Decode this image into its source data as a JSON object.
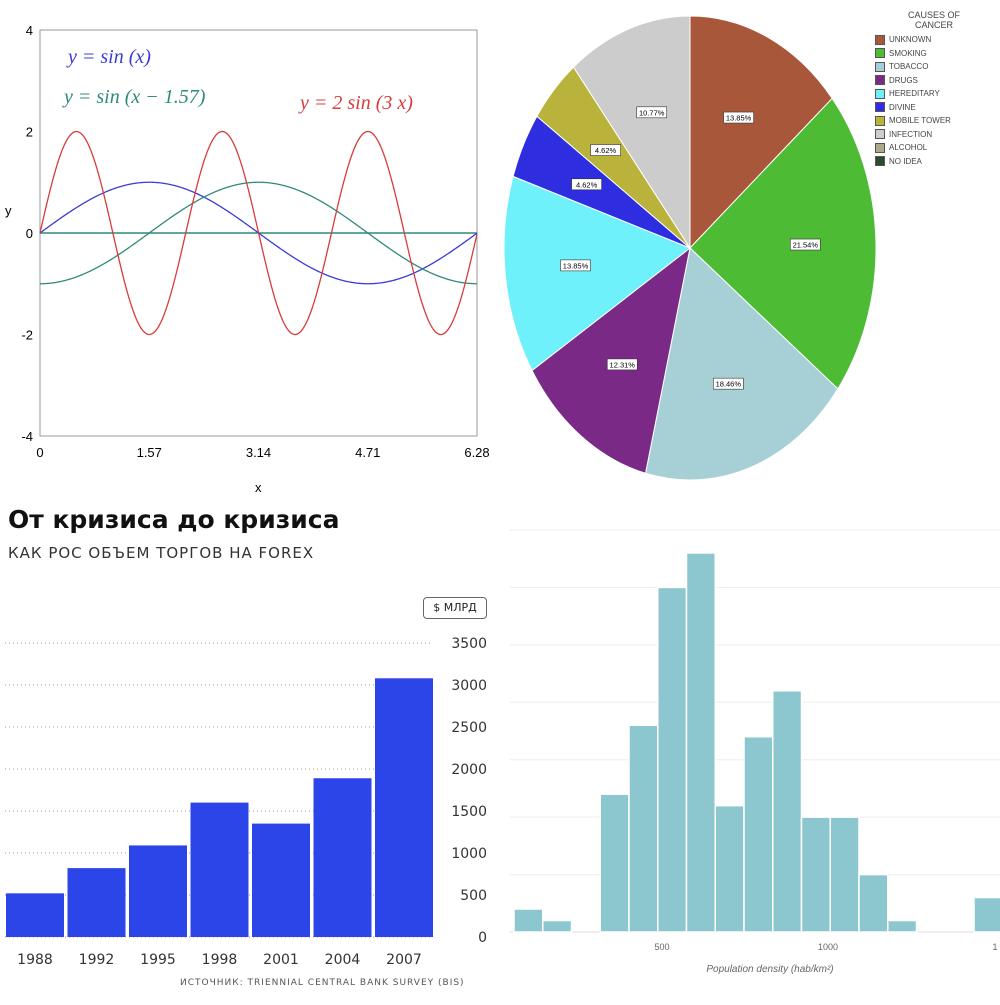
{
  "colors": {
    "sin_x": "#3b3bd6",
    "sin_shift": "#2f8a7a",
    "two_sin": "#d83c3c",
    "forex_bar": "#2c45e8",
    "hist_bar": "#8cc7cf",
    "pie_label_bg": "#ffffff"
  },
  "chart_data": [
    {
      "type": "line",
      "xlabel": "x",
      "ylabel": "y",
      "xlim": [
        0,
        6.28
      ],
      "ylim": [
        -4,
        4
      ],
      "x_ticks": [
        "0",
        "1.57",
        "3.14",
        "4.71",
        "6.28"
      ],
      "y_ticks": [
        "4",
        "2",
        "0",
        "-2",
        "-4"
      ],
      "annotations": {
        "eq1": "y = sin (x)",
        "eq2": "y = sin (x − 1.57)",
        "eq3": "y = 2 sin (3 x)"
      },
      "series": [
        {
          "name": "y = sin (x)",
          "function": "sin(x)",
          "color": "#3b3bd6"
        },
        {
          "name": "y = sin (x − 1.57)",
          "function": "sin(x - 1.57)",
          "color": "#2f8a7a"
        },
        {
          "name": "y = 2 sin (3 x)",
          "function": "2*sin(3*x)",
          "color": "#d83c3c"
        }
      ],
      "baseline": 0
    },
    {
      "type": "pie",
      "legend_title": [
        "CAUSES OF",
        "CANCER"
      ],
      "legend_placement": "top-right",
      "slices": [
        {
          "label": "UNKNOWN",
          "value": 13.85,
          "text": "13.85%",
          "color": "#a9573a"
        },
        {
          "label": "SMOKING",
          "value": 21.54,
          "text": "21.54%",
          "color": "#4dbb33"
        },
        {
          "label": "TOBACCO",
          "value": 18.46,
          "text": "18.46%",
          "color": "#a7cfd6"
        },
        {
          "label": "DRUGS",
          "value": 12.31,
          "text": "12.31%",
          "color": "#7a2a86"
        },
        {
          "label": "HEREDITARY",
          "value": 13.85,
          "text": "13.85%",
          "color": "#6ff1fb"
        },
        {
          "label": "DIVINE",
          "value": 4.62,
          "text": "4.62%",
          "color": "#2e2ee0"
        },
        {
          "label": "MOBILE TOWER",
          "value": 4.62,
          "text": "4.62%",
          "color": "#b9b33b"
        },
        {
          "label": "INFECTION",
          "value": 10.77,
          "text": "10.77%",
          "color": "#cccccc"
        },
        {
          "label": "ALCOHOL",
          "value": 0,
          "text": "",
          "color": "#b0a68a"
        },
        {
          "label": "NO IDEA",
          "value": 0,
          "text": "",
          "color": "#2b4a2b"
        }
      ]
    },
    {
      "type": "bar",
      "title": "От кризиса до кризиса",
      "subtitle": "КАК РОС ОБЪЕМ ТОРГОВ НА FOREX",
      "unit": "$ МЛРД",
      "source": "ИСТОЧНИК: TRIENNIAL CENTRAL BANK SURVEY (BIS)",
      "categories": [
        "1988",
        "1992",
        "1995",
        "1998",
        "2001",
        "2004",
        "2007"
      ],
      "values": [
        520,
        820,
        1090,
        1600,
        1350,
        1890,
        3080
      ],
      "ylim": [
        0,
        3500
      ],
      "y_ticks": [
        "3500",
        "3000",
        "2500",
        "2000",
        "1500",
        "1000",
        "500",
        "0"
      ],
      "grid": "dotted horizontal"
    },
    {
      "type": "bar",
      "subtype": "histogram",
      "xlabel": "Population density (hab/km²)",
      "x_ticks": [
        "500",
        "1000",
        "1"
      ],
      "values": [
        2,
        1,
        0,
        12,
        18,
        30,
        33,
        11,
        17,
        21,
        10,
        10,
        5,
        1,
        0,
        0,
        3,
        1
      ],
      "ylim": [
        0,
        35
      ],
      "grid": "horizontal"
    }
  ]
}
